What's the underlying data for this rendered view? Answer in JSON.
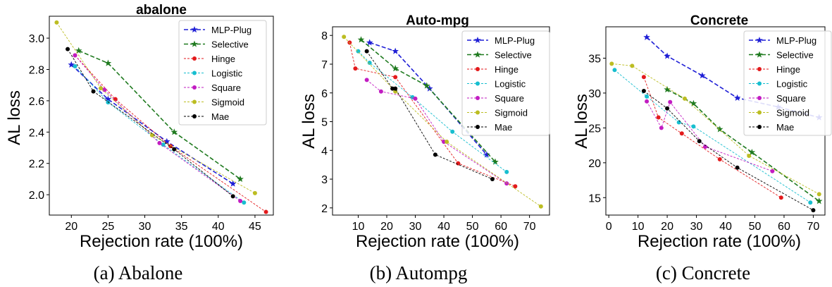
{
  "colors": {
    "MLP-Plug": "#1f1fd6",
    "Selective": "#1f7a1f",
    "Hinge": "#e31a1c",
    "Logistic": "#17becf",
    "Square": "#c21cc2",
    "Sigmoid": "#bcbd22",
    "Mae": "#000000"
  },
  "chart_data": [
    {
      "type": "line",
      "title": "abalone",
      "caption": "(a) Abalone",
      "xlabel": "Rejection rate (100%)",
      "ylabel": "AL loss",
      "xlim": [
        17,
        47.5
      ],
      "ylim": [
        1.87,
        3.14
      ],
      "xticks": [
        20,
        25,
        30,
        35,
        40,
        45
      ],
      "yticks": [
        2.0,
        2.2,
        2.4,
        2.6,
        2.8,
        3.0
      ],
      "ytick_labels": [
        "2.0",
        "2.2",
        "2.4",
        "2.6",
        "2.8",
        "3.0"
      ],
      "legend_position": "top-right",
      "series": [
        {
          "name": "MLP-Plug",
          "marker": "star",
          "dash": "6,3",
          "x": [
            20,
            25,
            33,
            42
          ],
          "y": [
            2.83,
            2.61,
            2.34,
            2.07
          ]
        },
        {
          "name": "Selective",
          "marker": "star",
          "dash": "6,3",
          "x": [
            21,
            25,
            34,
            43
          ],
          "y": [
            2.92,
            2.84,
            2.4,
            2.1
          ]
        },
        {
          "name": "Hinge",
          "marker": "circle",
          "dash": "3,2",
          "x": [
            20.5,
            26,
            33.5,
            46.5
          ],
          "y": [
            2.89,
            2.61,
            2.31,
            1.89
          ]
        },
        {
          "name": "Logistic",
          "marker": "circle",
          "dash": "3,2",
          "x": [
            20.5,
            25,
            32.5,
            43.5
          ],
          "y": [
            2.82,
            2.59,
            2.32,
            1.95
          ]
        },
        {
          "name": "Square",
          "marker": "circle",
          "dash": "3,2",
          "x": [
            20.5,
            24.5,
            32,
            43
          ],
          "y": [
            2.89,
            2.67,
            2.33,
            1.96
          ]
        },
        {
          "name": "Sigmoid",
          "marker": "circle",
          "dash": "3,2",
          "x": [
            18,
            24,
            31,
            45
          ],
          "y": [
            3.1,
            2.68,
            2.38,
            2.01
          ]
        },
        {
          "name": "Mae",
          "marker": "circle",
          "dash": "3,2",
          "x": [
            19.5,
            23,
            34,
            42
          ],
          "y": [
            2.93,
            2.66,
            2.29,
            1.99
          ]
        }
      ]
    },
    {
      "type": "line",
      "title": "Auto-mpg",
      "caption": "(b) Autompg",
      "xlabel": "Rejection rate (100%)",
      "ylabel": "AL loss",
      "xlim": [
        1,
        77
      ],
      "ylim": [
        1.75,
        8.3
      ],
      "xticks": [
        10,
        20,
        30,
        40,
        50,
        60,
        70
      ],
      "yticks": [
        2,
        3,
        4,
        5,
        6,
        7,
        8
      ],
      "ytick_labels": [
        "2",
        "3",
        "4",
        "5",
        "6",
        "7",
        "8"
      ],
      "legend_position": "top-right",
      "series": [
        {
          "name": "MLP-Plug",
          "marker": "star",
          "dash": "6,3",
          "x": [
            14,
            23,
            35,
            55
          ],
          "y": [
            7.75,
            7.45,
            6.15,
            3.85
          ]
        },
        {
          "name": "Selective",
          "marker": "star",
          "dash": "6,3",
          "x": [
            11,
            23,
            34,
            58
          ],
          "y": [
            7.85,
            6.85,
            6.25,
            3.6
          ]
        },
        {
          "name": "Hinge",
          "marker": "circle",
          "dash": "3,2",
          "x": [
            7,
            9,
            23,
            45,
            65
          ],
          "y": [
            7.75,
            6.85,
            6.55,
            3.55,
            2.75
          ]
        },
        {
          "name": "Logistic",
          "marker": "circle",
          "dash": "3,2",
          "x": [
            10,
            14,
            29,
            43,
            62
          ],
          "y": [
            7.45,
            7.05,
            5.85,
            4.65,
            3.25
          ]
        },
        {
          "name": "Square",
          "marker": "circle",
          "dash": "3,2",
          "x": [
            13,
            18,
            30,
            40,
            62
          ],
          "y": [
            6.45,
            6.05,
            5.8,
            4.3,
            2.85
          ]
        },
        {
          "name": "Sigmoid",
          "marker": "circle",
          "dash": "3,2",
          "x": [
            5,
            23,
            41,
            74
          ],
          "y": [
            7.95,
            6.05,
            4.3,
            2.05
          ]
        },
        {
          "name": "Mae",
          "marker": "circle",
          "dash": "3,2",
          "x": [
            13,
            22,
            23,
            37,
            57
          ],
          "y": [
            7.45,
            6.15,
            6.15,
            3.85,
            3.0
          ]
        }
      ]
    },
    {
      "type": "line",
      "title": "Concrete",
      "caption": "(c) Concrete",
      "xlabel": "Rejection rate (100%)",
      "ylabel": "AL loss",
      "xlim": [
        -1,
        74
      ],
      "ylim": [
        12.5,
        39.5
      ],
      "xticks": [
        0,
        10,
        20,
        30,
        40,
        50,
        60,
        70
      ],
      "yticks": [
        15,
        20,
        25,
        30,
        35
      ],
      "ytick_labels": [
        "15",
        "20",
        "25",
        "30",
        "35"
      ],
      "legend_position": "top-right",
      "series": [
        {
          "name": "MLP-Plug",
          "marker": "star",
          "dash": "6,3",
          "x": [
            13,
            20,
            32,
            44,
            58,
            72
          ],
          "y": [
            38,
            35.3,
            32.5,
            29.3,
            28,
            26.5
          ]
        },
        {
          "name": "Selective",
          "marker": "star",
          "dash": "6,3",
          "x": [
            20,
            29,
            38,
            49,
            72
          ],
          "y": [
            30.5,
            28.5,
            24.8,
            21.5,
            14.5
          ]
        },
        {
          "name": "Hinge",
          "marker": "circle",
          "dash": "3,2",
          "x": [
            12,
            17,
            25,
            38,
            59
          ],
          "y": [
            32.3,
            26.5,
            24.2,
            20.5,
            15.0
          ]
        },
        {
          "name": "Logistic",
          "marker": "circle",
          "dash": "3,2",
          "x": [
            2,
            13,
            24,
            29,
            69
          ],
          "y": [
            33.3,
            29.5,
            25.8,
            25.2,
            14.3
          ]
        },
        {
          "name": "Square",
          "marker": "circle",
          "dash": "3,2",
          "x": [
            13,
            18,
            21,
            33,
            56
          ],
          "y": [
            28.8,
            25.0,
            28.7,
            22.3,
            18.8
          ]
        },
        {
          "name": "Sigmoid",
          "marker": "circle",
          "dash": "3,2",
          "x": [
            1,
            8,
            26,
            48,
            72
          ],
          "y": [
            34.2,
            33.9,
            29.2,
            21.0,
            15.5
          ]
        },
        {
          "name": "Mae",
          "marker": "circle",
          "dash": "3,2",
          "x": [
            12,
            20,
            31,
            44,
            70
          ],
          "y": [
            30.3,
            27.8,
            23.1,
            19.3,
            13.2
          ]
        }
      ]
    }
  ]
}
